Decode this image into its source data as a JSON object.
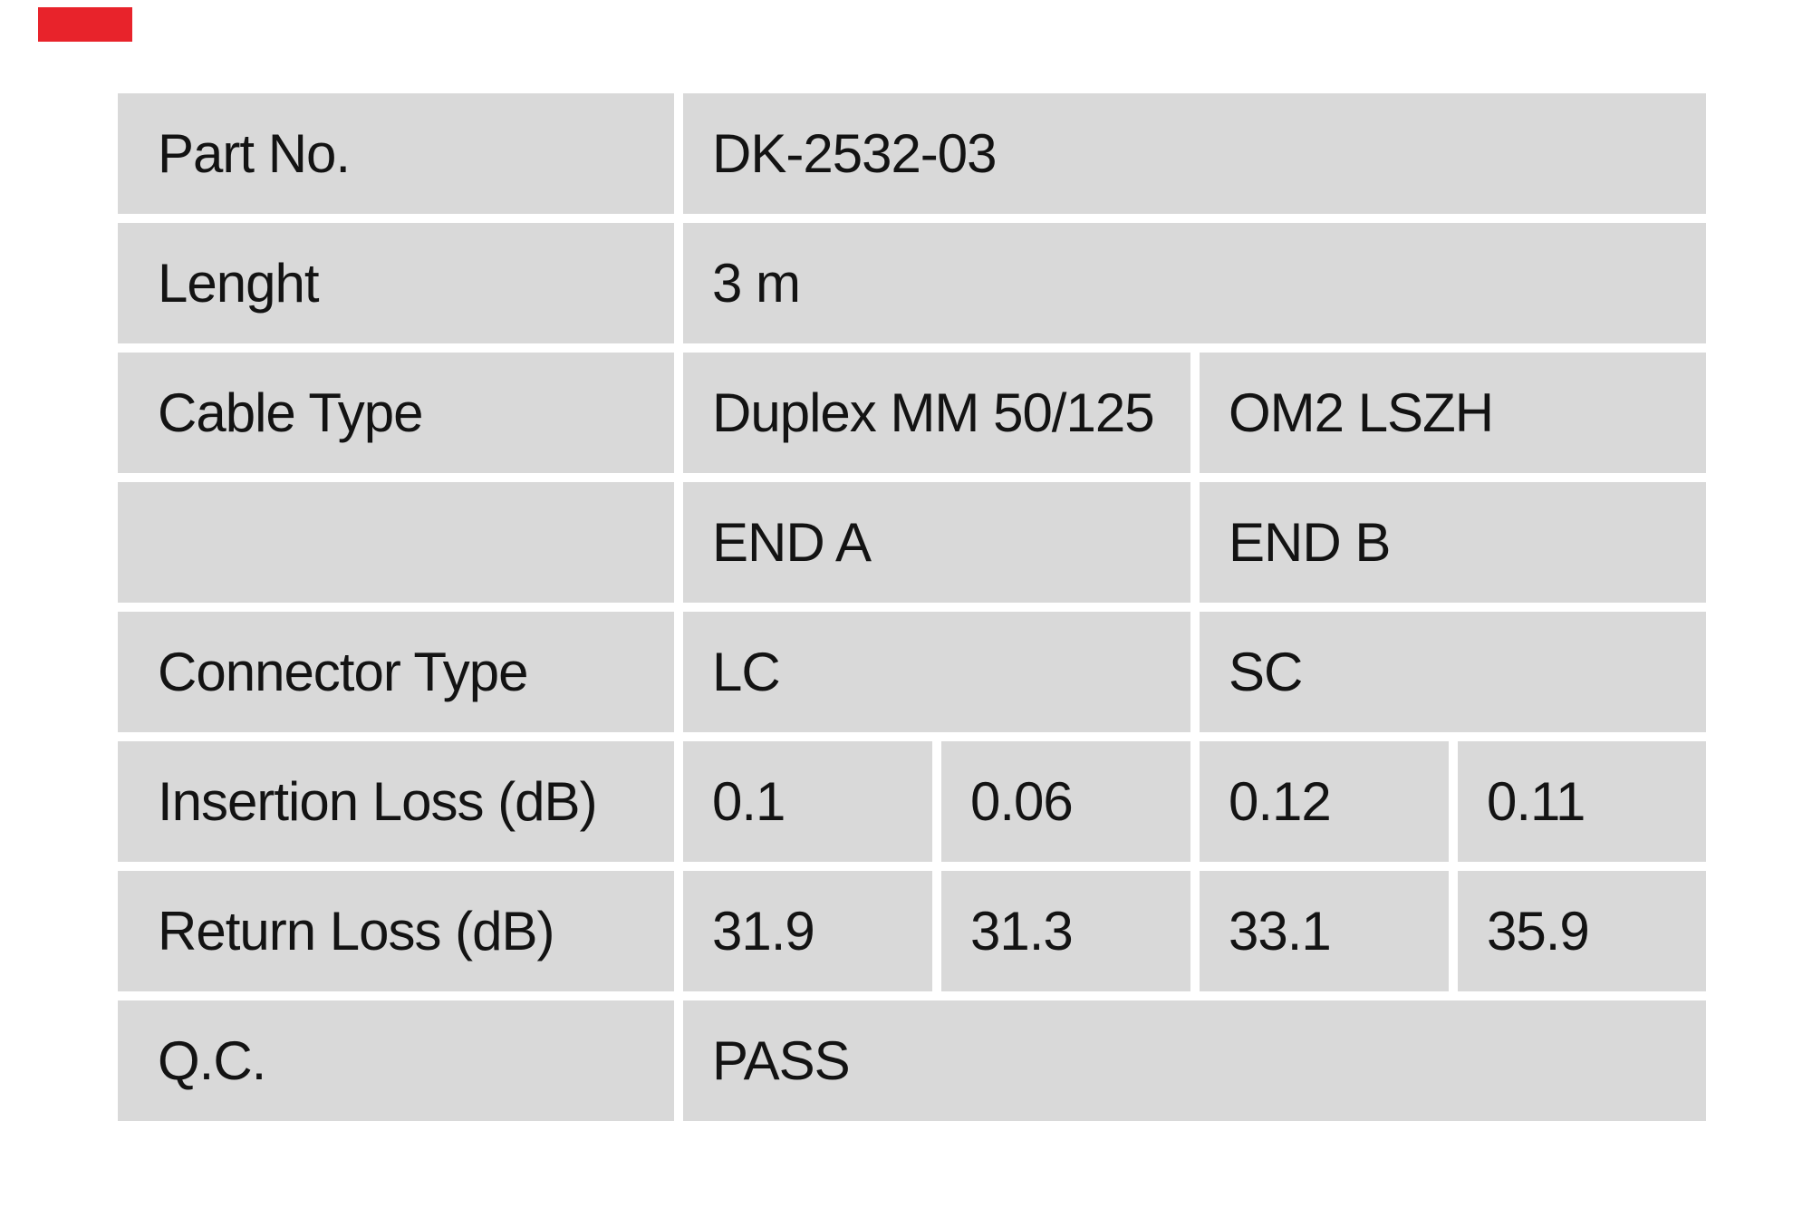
{
  "page": {
    "background_color": "#ffffff"
  },
  "logo": {
    "color": "#e8232b"
  },
  "table": {
    "cell_background": "#d9d9d9",
    "text_color": "#131313",
    "rows": [
      {
        "label": "Part No.",
        "full_value": "DK-2532-03"
      },
      {
        "label": "Lenght",
        "full_value": "3 m"
      },
      {
        "label": "Cable Type",
        "end_a": "Duplex MM 50/125",
        "end_b": "OM2 LSZH"
      },
      {
        "label": "",
        "end_a": "END A",
        "end_b": "END B"
      },
      {
        "label": "Connector Type",
        "end_a": "LC",
        "end_b": "SC"
      },
      {
        "label": "Insertion Loss (dB)",
        "end_a_1": "0.1",
        "end_a_2": "0.06",
        "end_b_1": "0.12",
        "end_b_2": "0.11"
      },
      {
        "label": "Return Loss (dB)",
        "end_a_1": "31.9",
        "end_a_2": "31.3",
        "end_b_1": "33.1",
        "end_b_2": "35.9"
      },
      {
        "label": "Q.C.",
        "full_value": "PASS"
      }
    ]
  }
}
